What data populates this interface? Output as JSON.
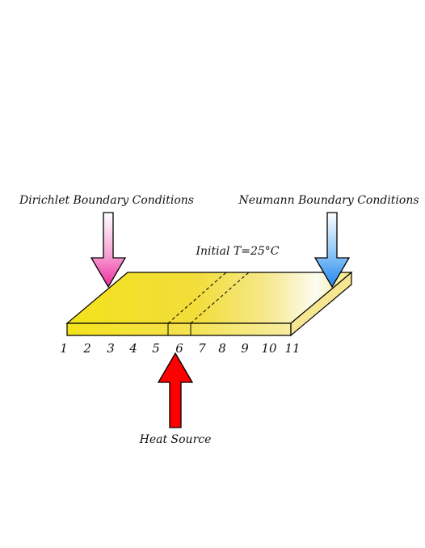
{
  "labels": {
    "dirichlet": "Dirichlet Boundary Conditions",
    "neumann": "Neumann Boundary Conditions",
    "initial": "Initial T=25°C",
    "heat_source": "Heat Source"
  },
  "node_numbers": [
    "1",
    "2",
    "3",
    "4",
    "5",
    "6",
    "7",
    "8",
    "9",
    "10",
    "11"
  ],
  "colors": {
    "plate": "#f2df1e",
    "dirichlet_arrow": "#ee3aa8",
    "neumann_arrow": "#2a8ef0",
    "heat_arrow": "#ff0000"
  }
}
